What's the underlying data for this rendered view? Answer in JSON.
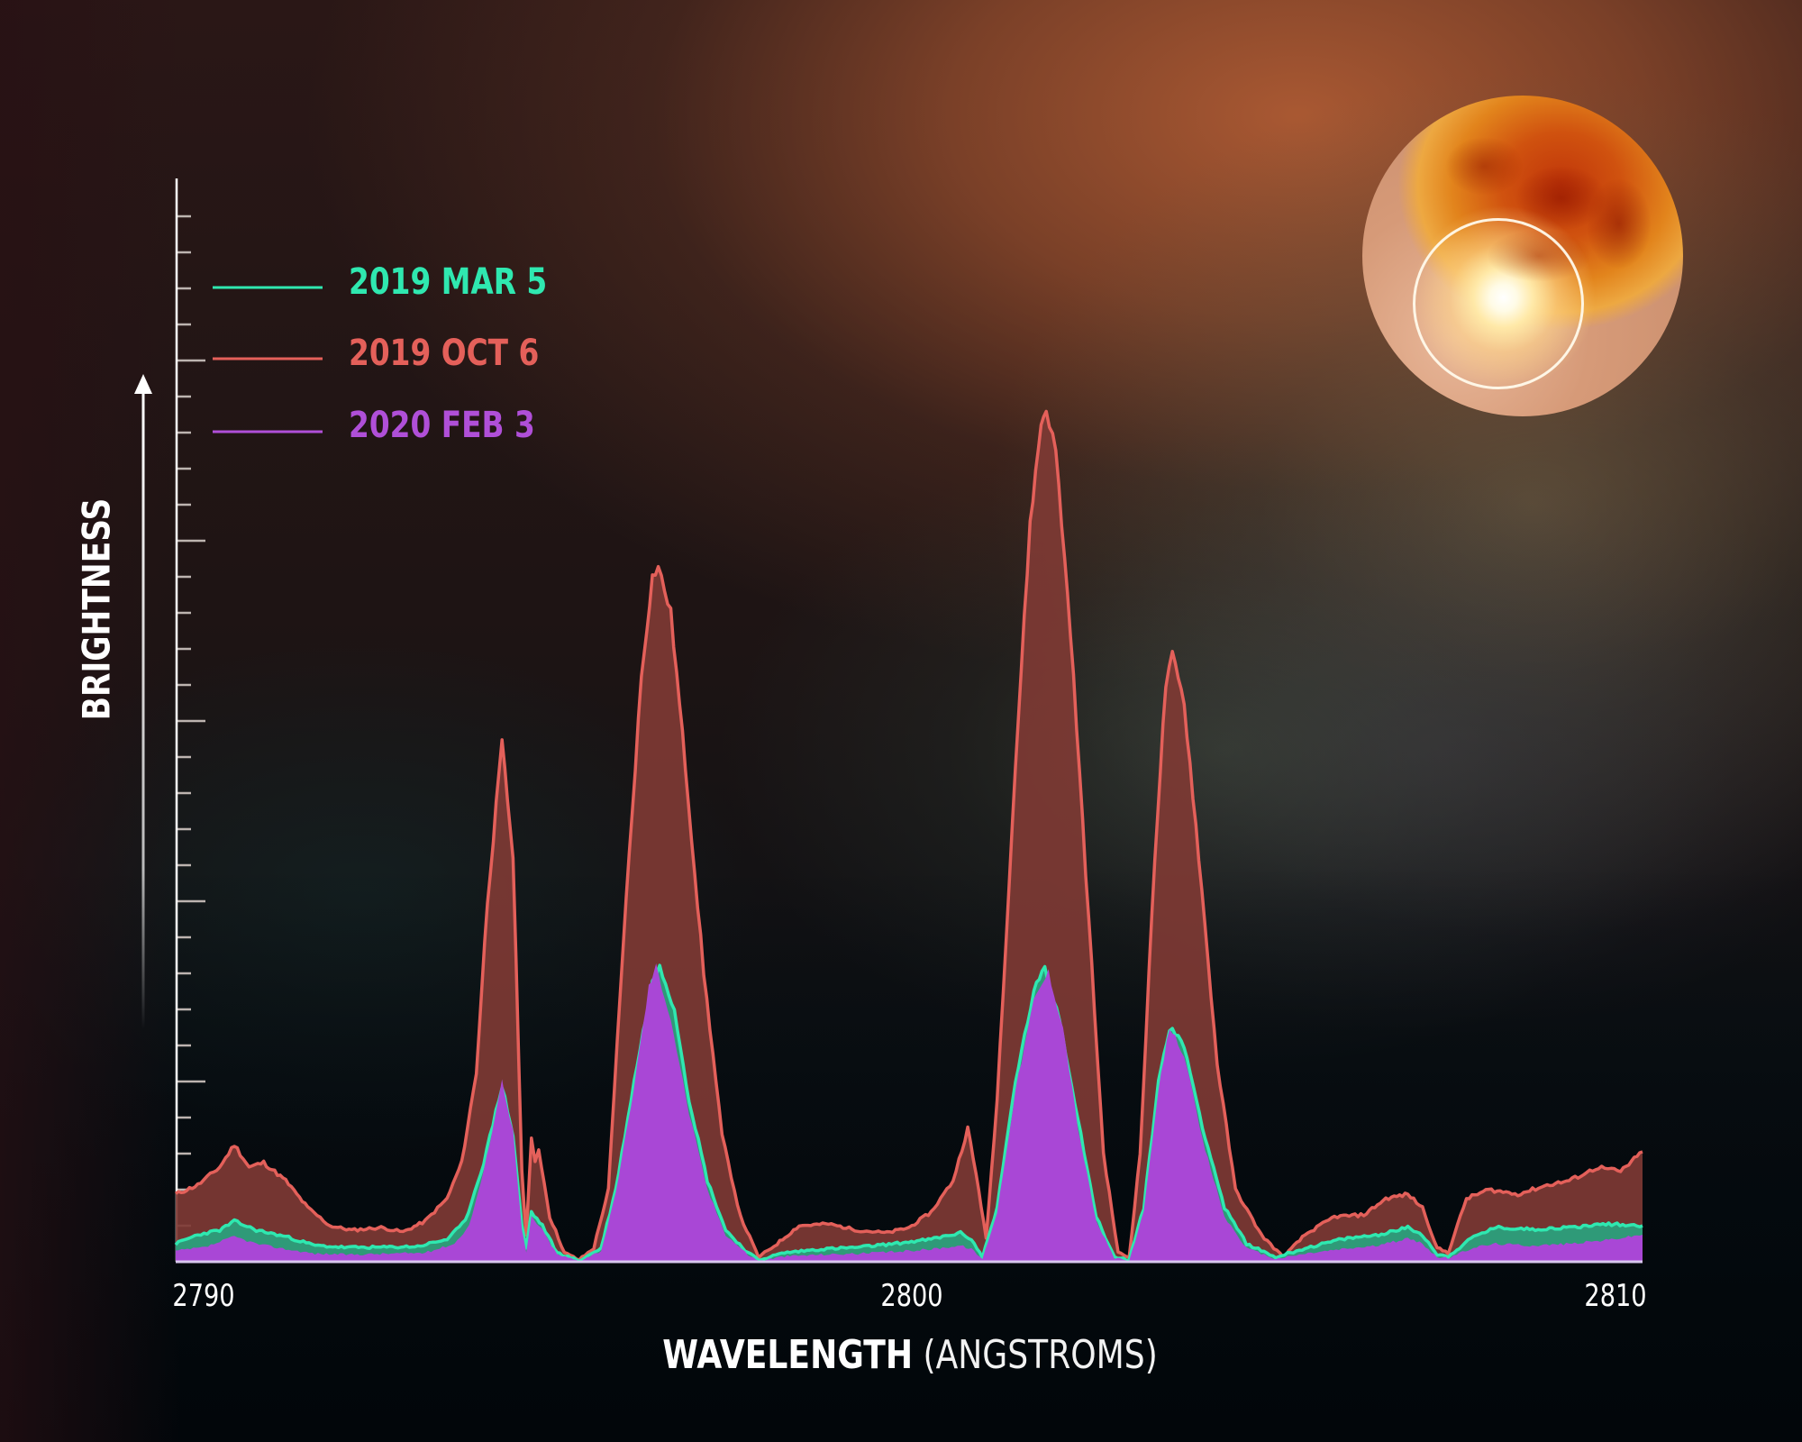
{
  "colors": {
    "mar5": "#2fe8b0",
    "oct6": "#e4605a",
    "oct6_fill": "#7e3a34",
    "feb3": "#a947d6",
    "mar5_fill": "#2f9a78",
    "axis": "#ffffff"
  },
  "legend": [
    {
      "label": "2019 MAR 5",
      "color": "#2fe8b0"
    },
    {
      "label": "2019 OCT 6",
      "color": "#e4605a"
    },
    {
      "label": "2020 FEB 3",
      "color": "#b04fd8"
    }
  ],
  "axes": {
    "xlabel_bold": "WAVELENGTH",
    "xlabel_light": "(ANGSTROMS)",
    "ylabel": "BRIGHTNESS",
    "xticks": [
      "2790",
      "2800",
      "2810"
    ]
  },
  "chart_data": {
    "type": "area",
    "title": "",
    "xlabel": "WAVELENGTH (ANGSTROMS)",
    "ylabel": "BRIGHTNESS",
    "xlim": [
      2790,
      2810
    ],
    "ylim": [
      0,
      120
    ],
    "xticks": [
      2790,
      2800,
      2810
    ],
    "yticks_unlabeled": true,
    "grid": false,
    "legend_position": "upper-left",
    "series": [
      {
        "name": "2019 OCT 6",
        "color": "#e4605a",
        "points": [
          [
            2790.0,
            7.5
          ],
          [
            2790.3,
            8.5
          ],
          [
            2790.6,
            10.5
          ],
          [
            2790.8,
            13.0
          ],
          [
            2791.0,
            10.5
          ],
          [
            2791.2,
            11.0
          ],
          [
            2791.5,
            9.0
          ],
          [
            2791.8,
            6.0
          ],
          [
            2792.1,
            4.0
          ],
          [
            2792.4,
            3.5
          ],
          [
            2792.8,
            3.8
          ],
          [
            2793.1,
            3.3
          ],
          [
            2793.4,
            4.5
          ],
          [
            2793.7,
            7.0
          ],
          [
            2793.9,
            11.0
          ],
          [
            2794.1,
            21.0
          ],
          [
            2794.25,
            40.0
          ],
          [
            2794.45,
            57.5
          ],
          [
            2794.6,
            45.0
          ],
          [
            2794.72,
            10.0
          ],
          [
            2794.78,
            3.0
          ],
          [
            2794.85,
            13.5
          ],
          [
            2794.9,
            11.0
          ],
          [
            2794.95,
            12.5
          ],
          [
            2795.1,
            5.0
          ],
          [
            2795.3,
            1.0
          ],
          [
            2795.5,
            0.2
          ],
          [
            2795.7,
            1.5
          ],
          [
            2795.9,
            8.0
          ],
          [
            2796.1,
            35.0
          ],
          [
            2796.35,
            65.0
          ],
          [
            2796.5,
            76.0
          ],
          [
            2796.58,
            77.1
          ],
          [
            2796.75,
            72.0
          ],
          [
            2796.95,
            55.0
          ],
          [
            2797.2,
            32.0
          ],
          [
            2797.45,
            14.0
          ],
          [
            2797.7,
            5.0
          ],
          [
            2797.95,
            0.5
          ],
          [
            2798.2,
            2.0
          ],
          [
            2798.5,
            4.0
          ],
          [
            2798.9,
            4.2
          ],
          [
            2799.3,
            3.5
          ],
          [
            2799.7,
            3.2
          ],
          [
            2800.0,
            3.8
          ],
          [
            2800.3,
            5.5
          ],
          [
            2800.6,
            9.0
          ],
          [
            2800.8,
            14.8
          ],
          [
            2800.95,
            8.0
          ],
          [
            2801.05,
            2.5
          ],
          [
            2801.2,
            18.0
          ],
          [
            2801.45,
            55.0
          ],
          [
            2801.65,
            82.0
          ],
          [
            2801.8,
            93.0
          ],
          [
            2801.87,
            94.6
          ],
          [
            2802.0,
            90.0
          ],
          [
            2802.2,
            70.0
          ],
          [
            2802.45,
            38.0
          ],
          [
            2802.65,
            12.0
          ],
          [
            2802.85,
            1.0
          ],
          [
            2803.0,
            0.5
          ],
          [
            2803.15,
            12.0
          ],
          [
            2803.35,
            45.0
          ],
          [
            2803.5,
            64.0
          ],
          [
            2803.59,
            67.2
          ],
          [
            2803.75,
            62.0
          ],
          [
            2803.95,
            45.0
          ],
          [
            2804.2,
            22.0
          ],
          [
            2804.45,
            8.0
          ],
          [
            2804.8,
            3.0
          ],
          [
            2805.1,
            0.5
          ],
          [
            2805.4,
            3.0
          ],
          [
            2805.8,
            5.0
          ],
          [
            2806.2,
            5.2
          ],
          [
            2806.5,
            7.0
          ],
          [
            2806.8,
            7.5
          ],
          [
            2807.0,
            6.0
          ],
          [
            2807.2,
            1.5
          ],
          [
            2807.35,
            1.0
          ],
          [
            2807.6,
            7.0
          ],
          [
            2807.9,
            8.0
          ],
          [
            2808.3,
            7.5
          ],
          [
            2808.7,
            8.5
          ],
          [
            2809.0,
            9.0
          ],
          [
            2809.4,
            10.5
          ],
          [
            2809.7,
            10.0
          ],
          [
            2810.0,
            12.2
          ]
        ]
      },
      {
        "name": "2019 MAR 5",
        "color": "#2fe8b0",
        "points": [
          [
            2790.0,
            2.0
          ],
          [
            2790.3,
            3.0
          ],
          [
            2790.6,
            3.5
          ],
          [
            2790.8,
            4.5
          ],
          [
            2791.1,
            3.5
          ],
          [
            2791.5,
            2.8
          ],
          [
            2791.9,
            1.8
          ],
          [
            2792.3,
            1.6
          ],
          [
            2792.8,
            1.6
          ],
          [
            2793.3,
            1.7
          ],
          [
            2793.7,
            2.5
          ],
          [
            2793.95,
            4.5
          ],
          [
            2794.2,
            11.0
          ],
          [
            2794.45,
            19.5
          ],
          [
            2794.6,
            14.0
          ],
          [
            2794.72,
            4.0
          ],
          [
            2794.78,
            1.5
          ],
          [
            2794.85,
            5.5
          ],
          [
            2795.0,
            4.0
          ],
          [
            2795.2,
            1.0
          ],
          [
            2795.5,
            0.1
          ],
          [
            2795.8,
            1.5
          ],
          [
            2796.0,
            8.0
          ],
          [
            2796.25,
            20.0
          ],
          [
            2796.5,
            31.0
          ],
          [
            2796.6,
            33.0
          ],
          [
            2796.8,
            28.0
          ],
          [
            2797.0,
            18.0
          ],
          [
            2797.25,
            9.0
          ],
          [
            2797.5,
            3.5
          ],
          [
            2797.8,
            1.0
          ],
          [
            2797.95,
            0.2
          ],
          [
            2798.3,
            1.0
          ],
          [
            2798.8,
            1.4
          ],
          [
            2799.3,
            1.6
          ],
          [
            2799.8,
            2.0
          ],
          [
            2800.3,
            2.5
          ],
          [
            2800.7,
            3.2
          ],
          [
            2800.85,
            2.5
          ],
          [
            2801.0,
            0.5
          ],
          [
            2801.2,
            6.0
          ],
          [
            2801.45,
            20.0
          ],
          [
            2801.7,
            30.0
          ],
          [
            2801.85,
            32.5
          ],
          [
            2802.05,
            27.0
          ],
          [
            2802.3,
            16.0
          ],
          [
            2802.55,
            5.0
          ],
          [
            2802.8,
            0.5
          ],
          [
            2803.0,
            0.2
          ],
          [
            2803.2,
            6.0
          ],
          [
            2803.4,
            20.0
          ],
          [
            2803.55,
            26.0
          ],
          [
            2803.75,
            24.0
          ],
          [
            2804.0,
            15.0
          ],
          [
            2804.3,
            6.0
          ],
          [
            2804.6,
            2.0
          ],
          [
            2805.0,
            0.5
          ],
          [
            2805.4,
            1.5
          ],
          [
            2805.9,
            2.5
          ],
          [
            2806.4,
            3.0
          ],
          [
            2806.8,
            3.8
          ],
          [
            2807.0,
            3.0
          ],
          [
            2807.2,
            0.8
          ],
          [
            2807.35,
            0.6
          ],
          [
            2807.7,
            2.8
          ],
          [
            2808.0,
            3.8
          ],
          [
            2808.5,
            3.6
          ],
          [
            2809.0,
            3.8
          ],
          [
            2809.5,
            4.2
          ],
          [
            2810.0,
            4.0
          ]
        ]
      },
      {
        "name": "2020 FEB 3",
        "color": "#a947d6",
        "points": [
          [
            2790.0,
            1.2
          ],
          [
            2790.4,
            1.6
          ],
          [
            2790.8,
            2.8
          ],
          [
            2791.1,
            2.0
          ],
          [
            2791.5,
            1.4
          ],
          [
            2791.9,
            0.9
          ],
          [
            2792.4,
            0.8
          ],
          [
            2792.9,
            0.9
          ],
          [
            2793.4,
            1.0
          ],
          [
            2793.8,
            2.0
          ],
          [
            2794.0,
            4.0
          ],
          [
            2794.2,
            10.0
          ],
          [
            2794.45,
            20.1
          ],
          [
            2794.6,
            14.5
          ],
          [
            2794.72,
            3.5
          ],
          [
            2794.78,
            1.0
          ],
          [
            2794.85,
            5.0
          ],
          [
            2795.0,
            3.5
          ],
          [
            2795.2,
            0.8
          ],
          [
            2795.5,
            0.1
          ],
          [
            2795.8,
            1.2
          ],
          [
            2796.0,
            7.5
          ],
          [
            2796.25,
            19.5
          ],
          [
            2796.45,
            30.5
          ],
          [
            2796.55,
            32.8
          ],
          [
            2796.75,
            27.0
          ],
          [
            2797.0,
            16.5
          ],
          [
            2797.25,
            8.0
          ],
          [
            2797.5,
            3.0
          ],
          [
            2797.8,
            0.8
          ],
          [
            2797.95,
            0.1
          ],
          [
            2798.3,
            0.6
          ],
          [
            2798.8,
            0.8
          ],
          [
            2799.3,
            0.9
          ],
          [
            2799.8,
            1.1
          ],
          [
            2800.3,
            1.4
          ],
          [
            2800.7,
            1.8
          ],
          [
            2800.85,
            1.4
          ],
          [
            2801.0,
            0.3
          ],
          [
            2801.2,
            5.5
          ],
          [
            2801.45,
            19.0
          ],
          [
            2801.7,
            29.0
          ],
          [
            2801.9,
            32.2
          ],
          [
            2802.1,
            26.0
          ],
          [
            2802.3,
            15.0
          ],
          [
            2802.55,
            4.5
          ],
          [
            2802.8,
            0.4
          ],
          [
            2803.0,
            0.1
          ],
          [
            2803.2,
            5.5
          ],
          [
            2803.4,
            19.0
          ],
          [
            2803.55,
            26.1
          ],
          [
            2803.75,
            23.0
          ],
          [
            2804.0,
            13.5
          ],
          [
            2804.3,
            5.0
          ],
          [
            2804.6,
            1.5
          ],
          [
            2805.0,
            0.3
          ],
          [
            2805.4,
            0.9
          ],
          [
            2805.9,
            1.4
          ],
          [
            2806.4,
            1.8
          ],
          [
            2806.8,
            2.6
          ],
          [
            2807.0,
            2.0
          ],
          [
            2807.2,
            0.5
          ],
          [
            2807.35,
            0.4
          ],
          [
            2807.7,
            1.6
          ],
          [
            2808.0,
            2.0
          ],
          [
            2808.5,
            1.8
          ],
          [
            2809.0,
            2.0
          ],
          [
            2809.5,
            2.4
          ],
          [
            2810.0,
            3.0
          ]
        ]
      }
    ],
    "annotations": [
      {
        "type": "inset-image",
        "description": "star with bright flare circled",
        "position": "upper-right"
      }
    ]
  }
}
